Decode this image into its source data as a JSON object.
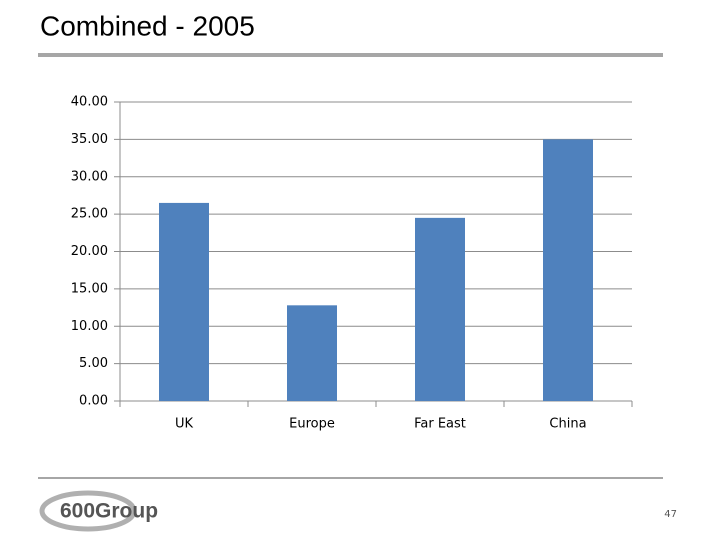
{
  "chart_data": {
    "type": "bar",
    "title": "Combined - 2005",
    "categories": [
      "UK",
      "Europe",
      "Far East",
      "China"
    ],
    "values": [
      26.5,
      12.8,
      24.5,
      35
    ],
    "color": "#4f81bd",
    "ylim": [
      0,
      40
    ],
    "yticks": [
      {
        "value": 0,
        "label": "0.00"
      },
      {
        "value": 5,
        "label": "5.00"
      },
      {
        "value": 10,
        "label": "10.00"
      },
      {
        "value": 15,
        "label": "15.00"
      },
      {
        "value": 20,
        "label": "20.00"
      },
      {
        "value": 25,
        "label": "25.00"
      },
      {
        "value": 30,
        "label": "30.00"
      },
      {
        "value": 35,
        "label": "35.00"
      },
      {
        "value": 40,
        "label": "40.00"
      }
    ],
    "grid": true
  },
  "logo": "600Group",
  "page_number": "47"
}
